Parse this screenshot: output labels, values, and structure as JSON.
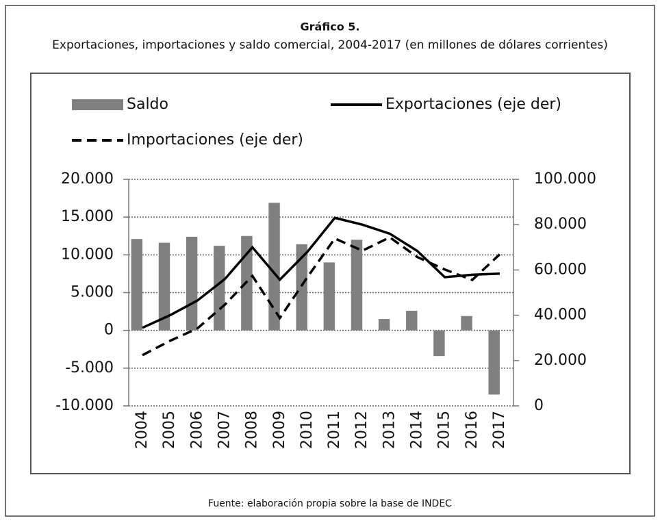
{
  "chart_data": {
    "type": "combo",
    "title": "Gráfico 5.",
    "subtitle": "Exportaciones, importaciones y saldo comercial, 2004-2017 (en millones de dólares corrientes)",
    "source": "Fuente: elaboración propia sobre la base de INDEC",
    "categories": [
      "2004",
      "2005",
      "2006",
      "2007",
      "2008",
      "2009",
      "2010",
      "2011",
      "2012",
      "2013",
      "2014",
      "2015",
      "2016",
      "2017"
    ],
    "series": [
      {
        "name": "Saldo",
        "type": "bar",
        "color": "#808080",
        "axis": "y",
        "values": [
          12100,
          11600,
          12400,
          11200,
          12500,
          16900,
          11400,
          9000,
          12000,
          1500,
          2600,
          -3400,
          1900,
          -8500
        ]
      },
      {
        "name": "Exportaciones (eje der)",
        "type": "line",
        "color": "#000000",
        "line_style": "solid",
        "axis": "y2",
        "values": [
          34500,
          40000,
          46500,
          56000,
          70000,
          55700,
          68000,
          83000,
          80000,
          76000,
          68400,
          56800,
          57900,
          58400
        ]
      },
      {
        "name": "Importaciones (eje der)",
        "type": "line",
        "color": "#000000",
        "line_style": "dashed",
        "axis": "y2",
        "values": [
          22400,
          28700,
          34200,
          44700,
          57400,
          38800,
          56800,
          73900,
          68500,
          74400,
          65700,
          60200,
          55600,
          66900
        ]
      }
    ],
    "ylim": [
      -10000,
      20000
    ],
    "yticks": [
      {
        "value": -10000,
        "label": "-10.000"
      },
      {
        "value": -5000,
        "label": "-5.000"
      },
      0,
      {
        "value": 5000,
        "label": "5.000"
      },
      {
        "value": 10000,
        "label": "10.000"
      },
      {
        "value": 15000,
        "label": "15.000"
      },
      {
        "value": 20000,
        "label": "20.000"
      }
    ],
    "y2lim": [
      0,
      100000
    ],
    "y2ticks": [
      0,
      {
        "value": 20000,
        "label": "20.000"
      },
      {
        "value": 40000,
        "label": "40.000"
      },
      {
        "value": 60000,
        "label": "60.000"
      },
      {
        "value": 80000,
        "label": "80.000"
      },
      {
        "value": 100000,
        "label": "100.000"
      }
    ],
    "grid": true
  }
}
